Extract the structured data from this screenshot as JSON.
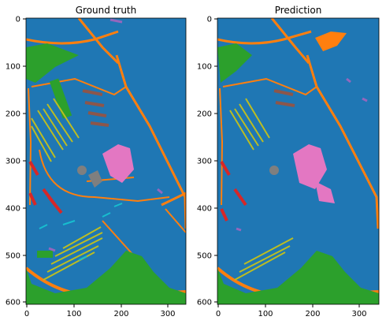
{
  "chart_data": [
    {
      "type": "heatmap",
      "title": "Ground truth",
      "xlabel": "",
      "ylabel": "",
      "xlim": [
        0,
        340
      ],
      "ylim": [
        610,
        0
      ],
      "x_ticks": [
        "0",
        "100",
        "200",
        "300"
      ],
      "y_ticks": [
        "0",
        "100",
        "200",
        "300",
        "400",
        "500",
        "600"
      ],
      "classes": [
        {
          "color": "#1f77b4"
        },
        {
          "color": "#ff7f0e"
        },
        {
          "color": "#2ca02c"
        },
        {
          "color": "#d62728"
        },
        {
          "color": "#9467bd"
        },
        {
          "color": "#8c564b"
        },
        {
          "color": "#e377c2"
        },
        {
          "color": "#7f7f7f"
        },
        {
          "color": "#bcbd22"
        },
        {
          "color": "#17becf"
        }
      ]
    },
    {
      "type": "heatmap",
      "title": "Prediction",
      "xlabel": "",
      "ylabel": "",
      "xlim": [
        0,
        340
      ],
      "ylim": [
        610,
        0
      ],
      "x_ticks": [
        "0",
        "100",
        "200",
        "300"
      ],
      "y_ticks": [
        "0",
        "100",
        "200",
        "300",
        "400",
        "500",
        "600"
      ]
    }
  ]
}
